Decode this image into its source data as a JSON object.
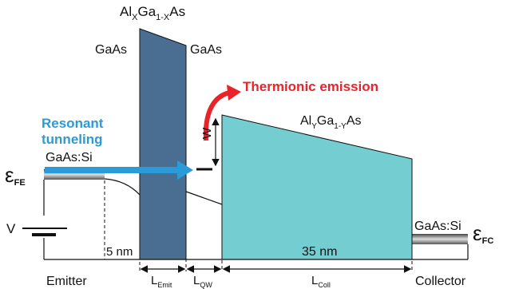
{
  "labels": {
    "barrier_material": "Al",
    "barrier_sub_x": "X",
    "barrier_mid": "Ga",
    "barrier_sub_1x": "1-X",
    "barrier_end": "As",
    "gaas_left": "GaAs",
    "gaas_right": "GaAs",
    "thermionic": "Thermionic emission",
    "resonant_line1": "Resonant",
    "resonant_line2": "tunneling",
    "emitter_doping": "GaAs:Si",
    "collector_doping": "GaAs:Si",
    "alloy_y_al": "Al",
    "alloy_y_sub_y": "Y",
    "alloy_y_ga": "Ga",
    "alloy_y_sub_1y": "1-Y",
    "alloy_y_as": "As",
    "w_label": "W",
    "epsilon_fe_symbol": "ε",
    "epsilon_fe_sub": "FE",
    "epsilon_fc_symbol": "ε",
    "epsilon_fc_sub": "FC",
    "voltage": "V",
    "thickness_5nm": "5 nm",
    "thickness_35nm": "35 nm",
    "emitter": "Emitter",
    "collector": "Collector",
    "l_emit_main": "L",
    "l_emit_sub": "Emit",
    "l_qw_main": "L",
    "l_qw_sub": "QW",
    "l_coll_main": "L",
    "l_coll_sub": "Coll"
  },
  "colors": {
    "barrier": "#4a6e91",
    "collector_barrier": "#74cdd1",
    "thermionic": "#e8242a",
    "resonant": "#2a9ad8",
    "contact_gradient_dark": "#5a5a5a",
    "contact_gradient_light": "#dcdcdc"
  }
}
